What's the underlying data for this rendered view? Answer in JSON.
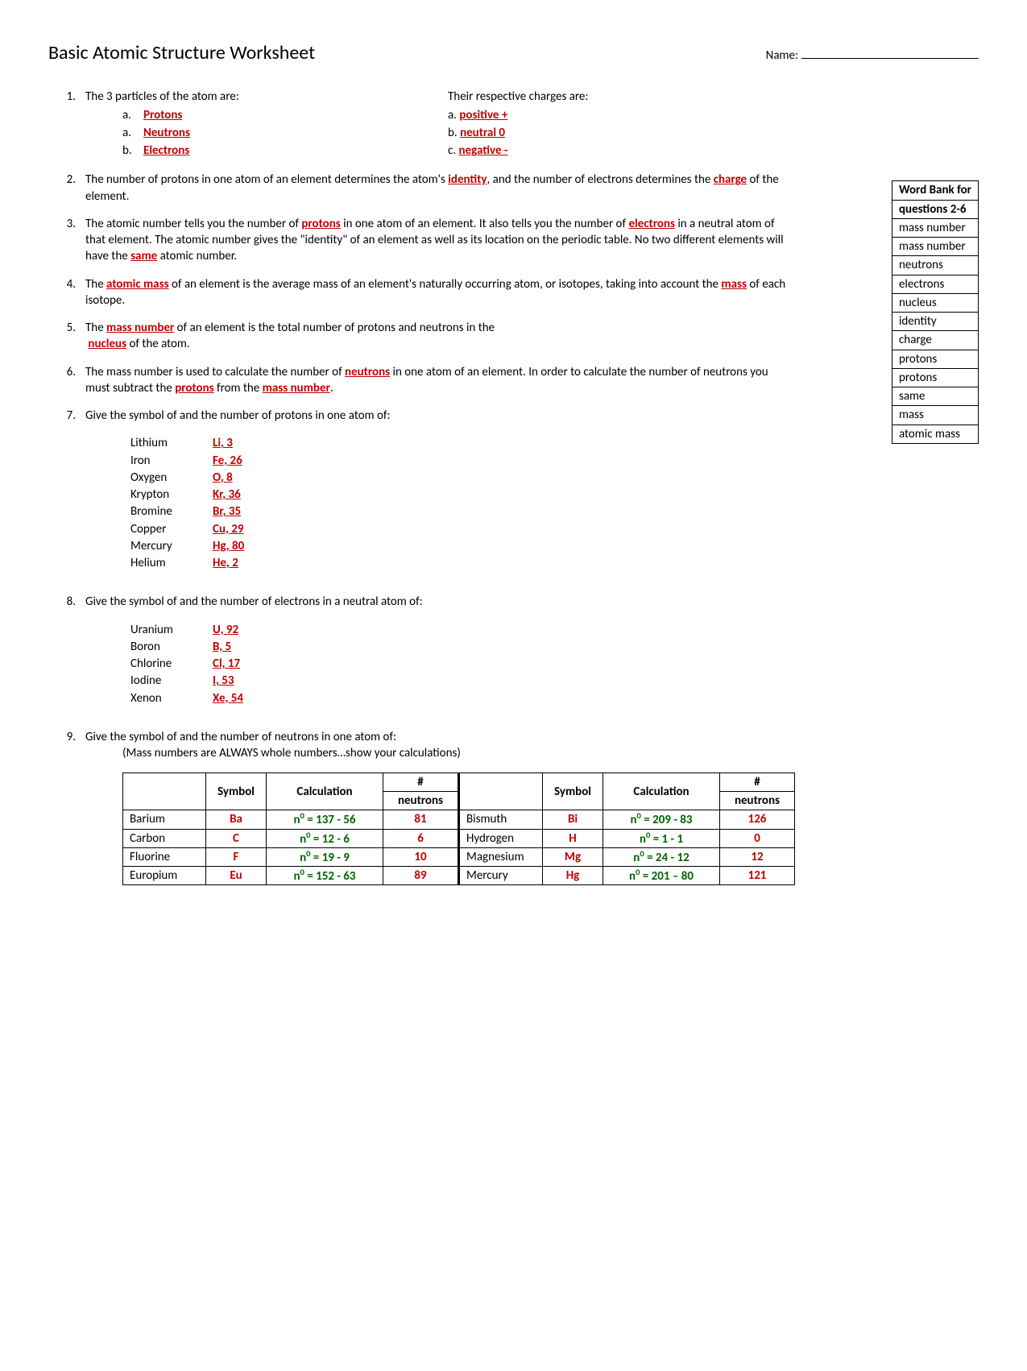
{
  "title": "Basic Atomic Structure Worksheet",
  "name_label": "Name:",
  "q1": {
    "num": "1.",
    "left_prompt": "The 3 particles of the atom are:",
    "right_prompt": "Their respective charges are:",
    "particles": [
      {
        "letter": "a.",
        "val": "Protons"
      },
      {
        "letter": "a.",
        "val": "Neutrons"
      },
      {
        "letter": "b.",
        "val": "Electrons"
      }
    ],
    "charges": [
      {
        "letter": "a.",
        "val": "positive +"
      },
      {
        "letter": "b.",
        "val": "neutral 0"
      },
      {
        "letter": "c.",
        "val": "negative -"
      }
    ]
  },
  "q2": {
    "num": "2.",
    "t1": "The number of protons in one atom of an element determines the atom's ",
    "a1": "identity",
    "t2": ", and the number of electrons determines the ",
    "a2": "charge",
    "t3": " of the element."
  },
  "q3": {
    "num": "3.",
    "t1": "The atomic number tells you the number of ",
    "a1": "protons",
    "t2": " in one atom of an element. It also tells you the number of ",
    "a2": "electrons",
    "t3": " in a neutral atom of that element. The atomic number gives the \"identity\" of an element as well as its location on the periodic table. No two different elements will have the ",
    "a3": "same",
    "t4": " atomic number."
  },
  "q4": {
    "num": "4.",
    "t1": "The ",
    "a1": "atomic mass",
    "t2": " of an element is the average mass of an element's naturally occurring atom, or isotopes, taking into account the ",
    "a2": "mass",
    "t3": " of each isotope."
  },
  "q5": {
    "num": "5.",
    "t1": "The ",
    "a1": "mass number",
    "t2": " of an element is the total number of protons and neutrons in the ",
    "a2": "nucleus",
    "t3": " of the atom."
  },
  "q6": {
    "num": "6.",
    "t1": "The mass number is used to calculate the number of ",
    "a1": "neutrons",
    "t2": " in one atom of an element. In order to calculate the number of neutrons you must subtract the ",
    "a2": "protons",
    "t3": " from the ",
    "a3": "mass number",
    "t4": "."
  },
  "q7": {
    "num": "7.",
    "prompt": "Give the symbol of and the number of protons in one atom of:",
    "rows": [
      {
        "n": "Lithium",
        "v": "Li, 3"
      },
      {
        "n": "Iron",
        "v": "Fe, 26"
      },
      {
        "n": "Oxygen",
        "v": "O, 8"
      },
      {
        "n": "Krypton",
        "v": "Kr, 36"
      },
      {
        "n": "Bromine",
        "v": "Br, 35"
      },
      {
        "n": "Copper",
        "v": "Cu, 29"
      },
      {
        "n": "Mercury",
        "v": "Hg, 80"
      },
      {
        "n": "Helium",
        "v": "He, 2"
      }
    ]
  },
  "q8": {
    "num": "8.",
    "prompt": "Give the symbol of and the number of electrons in a neutral atom of:",
    "rows": [
      {
        "n": "Uranium",
        "v": "U, 92"
      },
      {
        "n": "Boron",
        "v": "B, 5"
      },
      {
        "n": "Chlorine",
        "v": "Cl, 17"
      },
      {
        "n": "Iodine",
        "v": "I, 53"
      },
      {
        "n": "Xenon",
        "v": "Xe, 54"
      }
    ]
  },
  "q9": {
    "num": "9.",
    "prompt": "Give the symbol of and the number of neutrons in one atom of:",
    "note": "(Mass numbers are ALWAYS whole numbers…show your calculations)",
    "headers": {
      "sym": "Symbol",
      "calc": "Calculation",
      "n_hdr_top": "#",
      "n_hdr_bot": "neutrons"
    },
    "left": [
      {
        "el": "Barium",
        "sym": "Ba",
        "calc": "137 - 56",
        "n": "81"
      },
      {
        "el": "Carbon",
        "sym": "C",
        "calc": "12 - 6",
        "n": "6"
      },
      {
        "el": "Fluorine",
        "sym": "F",
        "calc": "19 - 9",
        "n": "10"
      },
      {
        "el": "Europium",
        "sym": "Eu",
        "calc": "152 - 63",
        "n": "89"
      }
    ],
    "right": [
      {
        "el": "Bismuth",
        "sym": "Bi",
        "calc": "209 - 83",
        "n": "126"
      },
      {
        "el": "Hydrogen",
        "sym": "H",
        "calc": "1 - 1",
        "n": "0"
      },
      {
        "el": "Magnesium",
        "sym": "Mg",
        "calc": "24 - 12",
        "n": "12"
      },
      {
        "el": "Mercury",
        "sym": "Hg",
        "calc": "201 – 80",
        "n": "121"
      }
    ]
  },
  "word_bank": {
    "title1": "Word Bank for",
    "title2": "questions 2-6",
    "items": [
      "mass number",
      "mass number",
      "neutrons",
      "electrons",
      "nucleus",
      "identity",
      "charge",
      "protons",
      "protons",
      "same",
      "mass",
      "atomic mass"
    ]
  }
}
